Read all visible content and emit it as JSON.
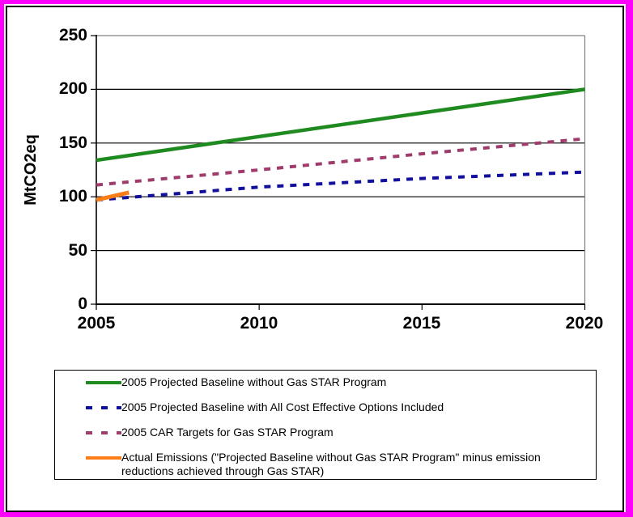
{
  "frame": {
    "outer_border_color": "#ff00ff",
    "inner_border_color": "#000000",
    "background": "#ffffff"
  },
  "chart_data": {
    "type": "line",
    "title": "",
    "xlabel": "",
    "ylabel": "MtCO2eq",
    "xlim": [
      2005,
      2020
    ],
    "ylim": [
      0,
      250
    ],
    "x_ticks": [
      "2005",
      "2010",
      "2015",
      "2020"
    ],
    "y_ticks": [
      "0",
      "50",
      "100",
      "150",
      "200",
      "250"
    ],
    "grid": true,
    "gridline_color": "#000000",
    "plot_frame_color": "#808080",
    "legend_position": "bottom-box",
    "series": [
      {
        "name": "2005 Projected Baseline without Gas STAR Program",
        "color": "#1f8a1f",
        "style": "solid",
        "x": [
          2005,
          2010,
          2015,
          2020
        ],
        "values": [
          134,
          156,
          178,
          200
        ]
      },
      {
        "name": "2005 Projected Baseline with All Cost Effective Options Included",
        "color": "#10109c",
        "style": "dashed",
        "x": [
          2005,
          2010,
          2015,
          2020
        ],
        "values": [
          97,
          109,
          117,
          123
        ]
      },
      {
        "name": "2005 CAR Targets for Gas STAR Program",
        "color": "#a03c6c",
        "style": "dashed",
        "x": [
          2005,
          2010,
          2015,
          2020
        ],
        "values": [
          111,
          125,
          140,
          154
        ]
      },
      {
        "name": "Actual Emissions (\"Projected Baseline without Gas STAR Program\" minus emission reductions achieved through Gas STAR)",
        "color": "#fb7e17",
        "style": "solid",
        "x": [
          2005,
          2006
        ],
        "values": [
          97,
          104
        ]
      }
    ]
  }
}
